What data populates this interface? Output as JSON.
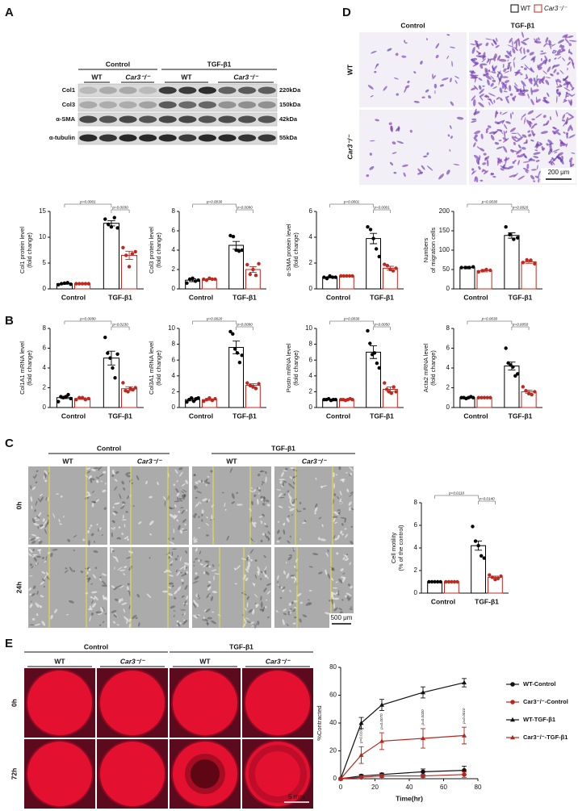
{
  "panel_labels": [
    "A",
    "D",
    "B",
    "C",
    "E"
  ],
  "blot": {
    "groups": [
      "Control",
      "TGF-β1"
    ],
    "genotypes": [
      "WT",
      "Car3⁻/⁻",
      "WT",
      "Car3⁻/⁻"
    ],
    "bands": [
      {
        "name": "Col1",
        "size": "220kDa"
      },
      {
        "name": "Col3",
        "size": "150kDa"
      },
      {
        "name": "α-SMA",
        "size": "42kDa"
      },
      {
        "name": "α-tubulin",
        "size": "55kDa"
      }
    ]
  },
  "migration": {
    "legend": [
      "WT",
      "Car3⁻/⁻"
    ],
    "columns": [
      "Control",
      "TGF-β1"
    ],
    "rows": [
      "WT",
      "Car3⁻/⁻"
    ],
    "scale_bar": "200 μm"
  },
  "wound": {
    "groups": [
      "Control",
      "TGF-β1"
    ],
    "genotypes": [
      "WT",
      "Car3⁻/⁻",
      "WT",
      "Car3⁻/⁻"
    ],
    "rows": [
      "0h",
      "24h"
    ],
    "scale_bar": "500 μm"
  },
  "gel": {
    "groups": [
      "Control",
      "TGF-β1"
    ],
    "genotypes": [
      "WT",
      "Car3⁻/⁻",
      "WT",
      "Car3⁻/⁻"
    ],
    "rows": [
      "0h",
      "72h"
    ],
    "scale_bar": "5 mm"
  },
  "chart_data": [
    {
      "type": "bar",
      "ylabel": [
        "Col1 protein level",
        "(fold change)"
      ],
      "categories": [
        "Control",
        "TGF-β1"
      ],
      "ylim": [
        0,
        15
      ],
      "yticks": [
        0,
        5,
        10,
        15
      ],
      "p_values": [
        "p=0.0001",
        "p=0.0030"
      ],
      "series": [
        {
          "color": "#000000",
          "values": [
            1.0,
            12.7
          ],
          "errors": [
            0.1,
            0.5
          ],
          "points": [
            [
              0.8,
              1.0,
              1.1,
              1.2,
              0.9
            ],
            [
              13.5,
              12.5,
              12.0,
              13.8,
              11.8
            ]
          ]
        },
        {
          "color": "#c0281f",
          "values": [
            1.0,
            6.5
          ],
          "errors": [
            0.05,
            0.8
          ],
          "points": [
            [
              1.0,
              1.0,
              1.0,
              1.0,
              1.0
            ],
            [
              8.0,
              6.5,
              4.3,
              6.8,
              7.2
            ]
          ]
        }
      ]
    },
    {
      "type": "bar",
      "ylabel": [
        "Col3 protein level",
        "(fold change)"
      ],
      "categories": [
        "Control",
        "TGF-β1"
      ],
      "ylim": [
        0,
        8
      ],
      "yticks": [
        0,
        2,
        4,
        6,
        8
      ],
      "p_values": [
        "p=0.0030",
        "p=0.0090"
      ],
      "series": [
        {
          "color": "#000000",
          "values": [
            0.9,
            4.5
          ],
          "errors": [
            0.15,
            0.4
          ],
          "points": [
            [
              0.6,
              1.0,
              1.1,
              0.8,
              0.9
            ],
            [
              5.5,
              5.4,
              4.0,
              3.9,
              4.0
            ]
          ]
        },
        {
          "color": "#c0281f",
          "values": [
            1.0,
            2.0
          ],
          "errors": [
            0.05,
            0.3
          ],
          "points": [
            [
              1.0,
              0.9,
              1.1,
              1.0,
              1.0
            ],
            [
              2.5,
              1.5,
              2.0,
              1.4,
              2.6
            ]
          ]
        }
      ]
    },
    {
      "type": "bar",
      "ylabel": [
        "α-SMA protein level",
        "(fold change)"
      ],
      "categories": [
        "Control",
        "TGF-β1"
      ],
      "ylim": [
        0,
        6
      ],
      "yticks": [
        0,
        2,
        4,
        6
      ],
      "p_values": [
        "p=0.0001",
        "p=0.0001"
      ],
      "series": [
        {
          "color": "#000000",
          "values": [
            0.9,
            3.9
          ],
          "errors": [
            0.05,
            0.4
          ],
          "points": [
            [
              0.9,
              0.8,
              1.0,
              0.9,
              0.9
            ],
            [
              4.8,
              4.6,
              3.9,
              3.1,
              2.5
            ]
          ]
        },
        {
          "color": "#c0281f",
          "values": [
            1.0,
            1.6
          ],
          "errors": [
            0.03,
            0.15
          ],
          "points": [
            [
              1.0,
              1.0,
              1.0,
              1.0,
              1.0
            ],
            [
              1.9,
              1.8,
              1.5,
              1.4,
              1.6
            ]
          ]
        }
      ]
    },
    {
      "type": "bar",
      "ylabel": [
        "Numbers",
        "of migration cells"
      ],
      "categories": [
        "Control",
        "TGF-β1"
      ],
      "ylim": [
        0,
        200
      ],
      "yticks": [
        0,
        50,
        100,
        150,
        200
      ],
      "p_values": [
        "p=0.0030",
        "p=0.0020"
      ],
      "series": [
        {
          "color": "#000000",
          "values": [
            55,
            138
          ],
          "errors": [
            3,
            7
          ],
          "points": [
            [
              55,
              55,
              55,
              57
            ],
            [
              160,
              140,
              128,
              132
            ]
          ]
        },
        {
          "color": "#c0281f",
          "values": [
            47,
            70
          ],
          "errors": [
            3,
            4
          ],
          "points": [
            [
              44,
              47,
              50,
              48
            ],
            [
              68,
              75,
              74,
              65
            ]
          ]
        }
      ]
    },
    {
      "type": "bar",
      "ylabel": [
        "Col1A1 mRNA level",
        "(fold change)"
      ],
      "categories": [
        "Control",
        "TGF-β1"
      ],
      "ylim": [
        0,
        8
      ],
      "yticks": [
        0,
        2,
        4,
        6,
        8
      ],
      "p_values": [
        "p=0.0090",
        "p=0.0230"
      ],
      "series": [
        {
          "color": "#000000",
          "values": [
            1.0,
            5.0
          ],
          "errors": [
            0.1,
            0.7
          ],
          "points": [
            [
              0.6,
              1.1,
              1.0,
              1.1,
              1.3,
              0.9
            ],
            [
              7.1,
              5.5,
              5.0,
              4.0,
              3.0,
              5.4
            ]
          ]
        },
        {
          "color": "#c0281f",
          "values": [
            0.9,
            1.9
          ],
          "errors": [
            0.08,
            0.2
          ],
          "points": [
            [
              0.8,
              1.0,
              1.0,
              0.8,
              0.9
            ],
            [
              2.5,
              1.7,
              1.6,
              1.9,
              1.8,
              2.0
            ]
          ]
        }
      ]
    },
    {
      "type": "bar",
      "ylabel": [
        "Col3A1 mRNA level",
        "(fold change)"
      ],
      "categories": [
        "Control",
        "TGF-β1"
      ],
      "ylim": [
        0,
        10
      ],
      "yticks": [
        0,
        2,
        4,
        6,
        8,
        10
      ],
      "p_values": [
        "p=0.0020",
        "p=0.0090"
      ],
      "series": [
        {
          "color": "#000000",
          "values": [
            1.0,
            7.6
          ],
          "errors": [
            0.15,
            0.8
          ],
          "points": [
            [
              0.7,
              1.0,
              1.2,
              0.8,
              1.1,
              1.2
            ],
            [
              9.6,
              9.3,
              7.4,
              6.9,
              5.7,
              6.6
            ]
          ]
        },
        {
          "color": "#c0281f",
          "values": [
            1.0,
            2.8
          ],
          "errors": [
            0.1,
            0.2
          ],
          "points": [
            [
              0.8,
              1.0,
              1.2,
              0.9,
              1.1
            ],
            [
              3.1,
              2.8,
              2.6,
              2.4,
              3.0
            ]
          ]
        }
      ]
    },
    {
      "type": "bar",
      "ylabel": [
        "Postn mRNA level",
        "(fold change)"
      ],
      "categories": [
        "Control",
        "TGF-β1"
      ],
      "ylim": [
        0,
        10
      ],
      "yticks": [
        0,
        2,
        4,
        6,
        8,
        10
      ],
      "p_values": [
        "p=0.0030",
        "p=0.0050"
      ],
      "series": [
        {
          "color": "#000000",
          "values": [
            1.0,
            7.0
          ],
          "errors": [
            0.05,
            0.8
          ],
          "points": [
            [
              1.0,
              1.0,
              1.1,
              0.9,
              1.0,
              1.0
            ],
            [
              9.7,
              8.1,
              6.7,
              6.9,
              5.6,
              5.0
            ]
          ]
        },
        {
          "color": "#c0281f",
          "values": [
            1.0,
            2.3
          ],
          "errors": [
            0.05,
            0.3
          ],
          "points": [
            [
              1.0,
              1.0,
              0.9,
              1.0,
              1.1,
              1.0
            ],
            [
              3.1,
              2.3,
              2.0,
              1.8,
              2.6,
              2.0
            ]
          ]
        }
      ]
    },
    {
      "type": "bar",
      "ylabel": [
        "Acta2 mRNA level",
        "(fold change)"
      ],
      "categories": [
        "Control",
        "TGF-β1"
      ],
      "ylim": [
        0,
        8
      ],
      "yticks": [
        0,
        2,
        4,
        6,
        8
      ],
      "p_values": [
        "p=0.0030",
        "p=0.0050"
      ],
      "series": [
        {
          "color": "#000000",
          "values": [
            1.0,
            4.2
          ],
          "errors": [
            0.05,
            0.4
          ],
          "points": [
            [
              1.0,
              1.0,
              0.9,
              1.0,
              1.1,
              1.0
            ],
            [
              6.0,
              4.5,
              4.3,
              4.1,
              3.2,
              3.4
            ]
          ]
        },
        {
          "color": "#c0281f",
          "values": [
            1.0,
            1.6
          ],
          "errors": [
            0.03,
            0.15
          ],
          "points": [
            [
              1.0,
              1.0,
              1.0,
              1.0,
              1.0
            ],
            [
              2.1,
              1.7,
              1.4,
              1.3,
              1.6
            ]
          ]
        }
      ]
    },
    {
      "type": "bar",
      "ylabel": [
        "Cell motility",
        "(% of the control)"
      ],
      "categories": [
        "Control",
        "TGF-β1"
      ],
      "ylim": [
        0,
        8
      ],
      "yticks": [
        0,
        2,
        4,
        6,
        8
      ],
      "p_values": [
        "p=0.0110",
        "p=0.0140"
      ],
      "series": [
        {
          "color": "#000000",
          "values": [
            1.0,
            4.2
          ],
          "errors": [
            0.0,
            0.4
          ],
          "points": [
            [
              1.0,
              1.0,
              1.0,
              1.0,
              1.0
            ],
            [
              5.9,
              4.6,
              4.2,
              3.3,
              3.1
            ]
          ]
        },
        {
          "color": "#c0281f",
          "values": [
            1.0,
            1.4
          ],
          "errors": [
            0.0,
            0.1
          ],
          "points": [
            [
              1.0,
              1.0,
              1.0,
              1.0,
              1.0
            ],
            [
              1.6,
              1.4,
              1.2,
              1.3,
              1.5
            ]
          ]
        }
      ]
    },
    {
      "type": "line",
      "xlabel": "Time(hr)",
      "ylabel": "%Contracted",
      "x": [
        0,
        12,
        24,
        48,
        72
      ],
      "xlim": [
        0,
        80
      ],
      "xticks": [
        0,
        20,
        40,
        60,
        80
      ],
      "ylim": [
        0,
        80
      ],
      "yticks": [
        0,
        20,
        40,
        60,
        80
      ],
      "series": [
        {
          "name": "WT-Control",
          "color": "#111111",
          "marker": "circle",
          "values": [
            0,
            2,
            3,
            5,
            6
          ],
          "errors": [
            0,
            1,
            1,
            2,
            3
          ]
        },
        {
          "name": "Car3⁻/⁻-Control",
          "color": "#b5261e",
          "marker": "circle",
          "values": [
            0,
            1,
            2,
            2,
            3
          ],
          "errors": [
            0,
            1,
            1,
            1,
            2
          ]
        },
        {
          "name": "WT-TGF-β1",
          "color": "#111111",
          "marker": "triangle",
          "values": [
            0,
            40,
            53,
            62,
            69
          ],
          "errors": [
            0,
            4,
            4,
            4,
            3
          ]
        },
        {
          "name": "Car3⁻/⁻-TGF-β1",
          "color": "#b5261e",
          "marker": "triangle",
          "values": [
            0,
            17,
            27,
            29,
            31
          ],
          "errors": [
            0,
            6,
            6,
            7,
            6
          ]
        }
      ],
      "annotations": [
        {
          "x": 12,
          "label": "p=0.0160"
        },
        {
          "x": 24,
          "label": "p=0.0070"
        },
        {
          "x": 48,
          "label": "p=0.0020"
        },
        {
          "x": 72,
          "label": "p=0.0010"
        }
      ]
    }
  ]
}
